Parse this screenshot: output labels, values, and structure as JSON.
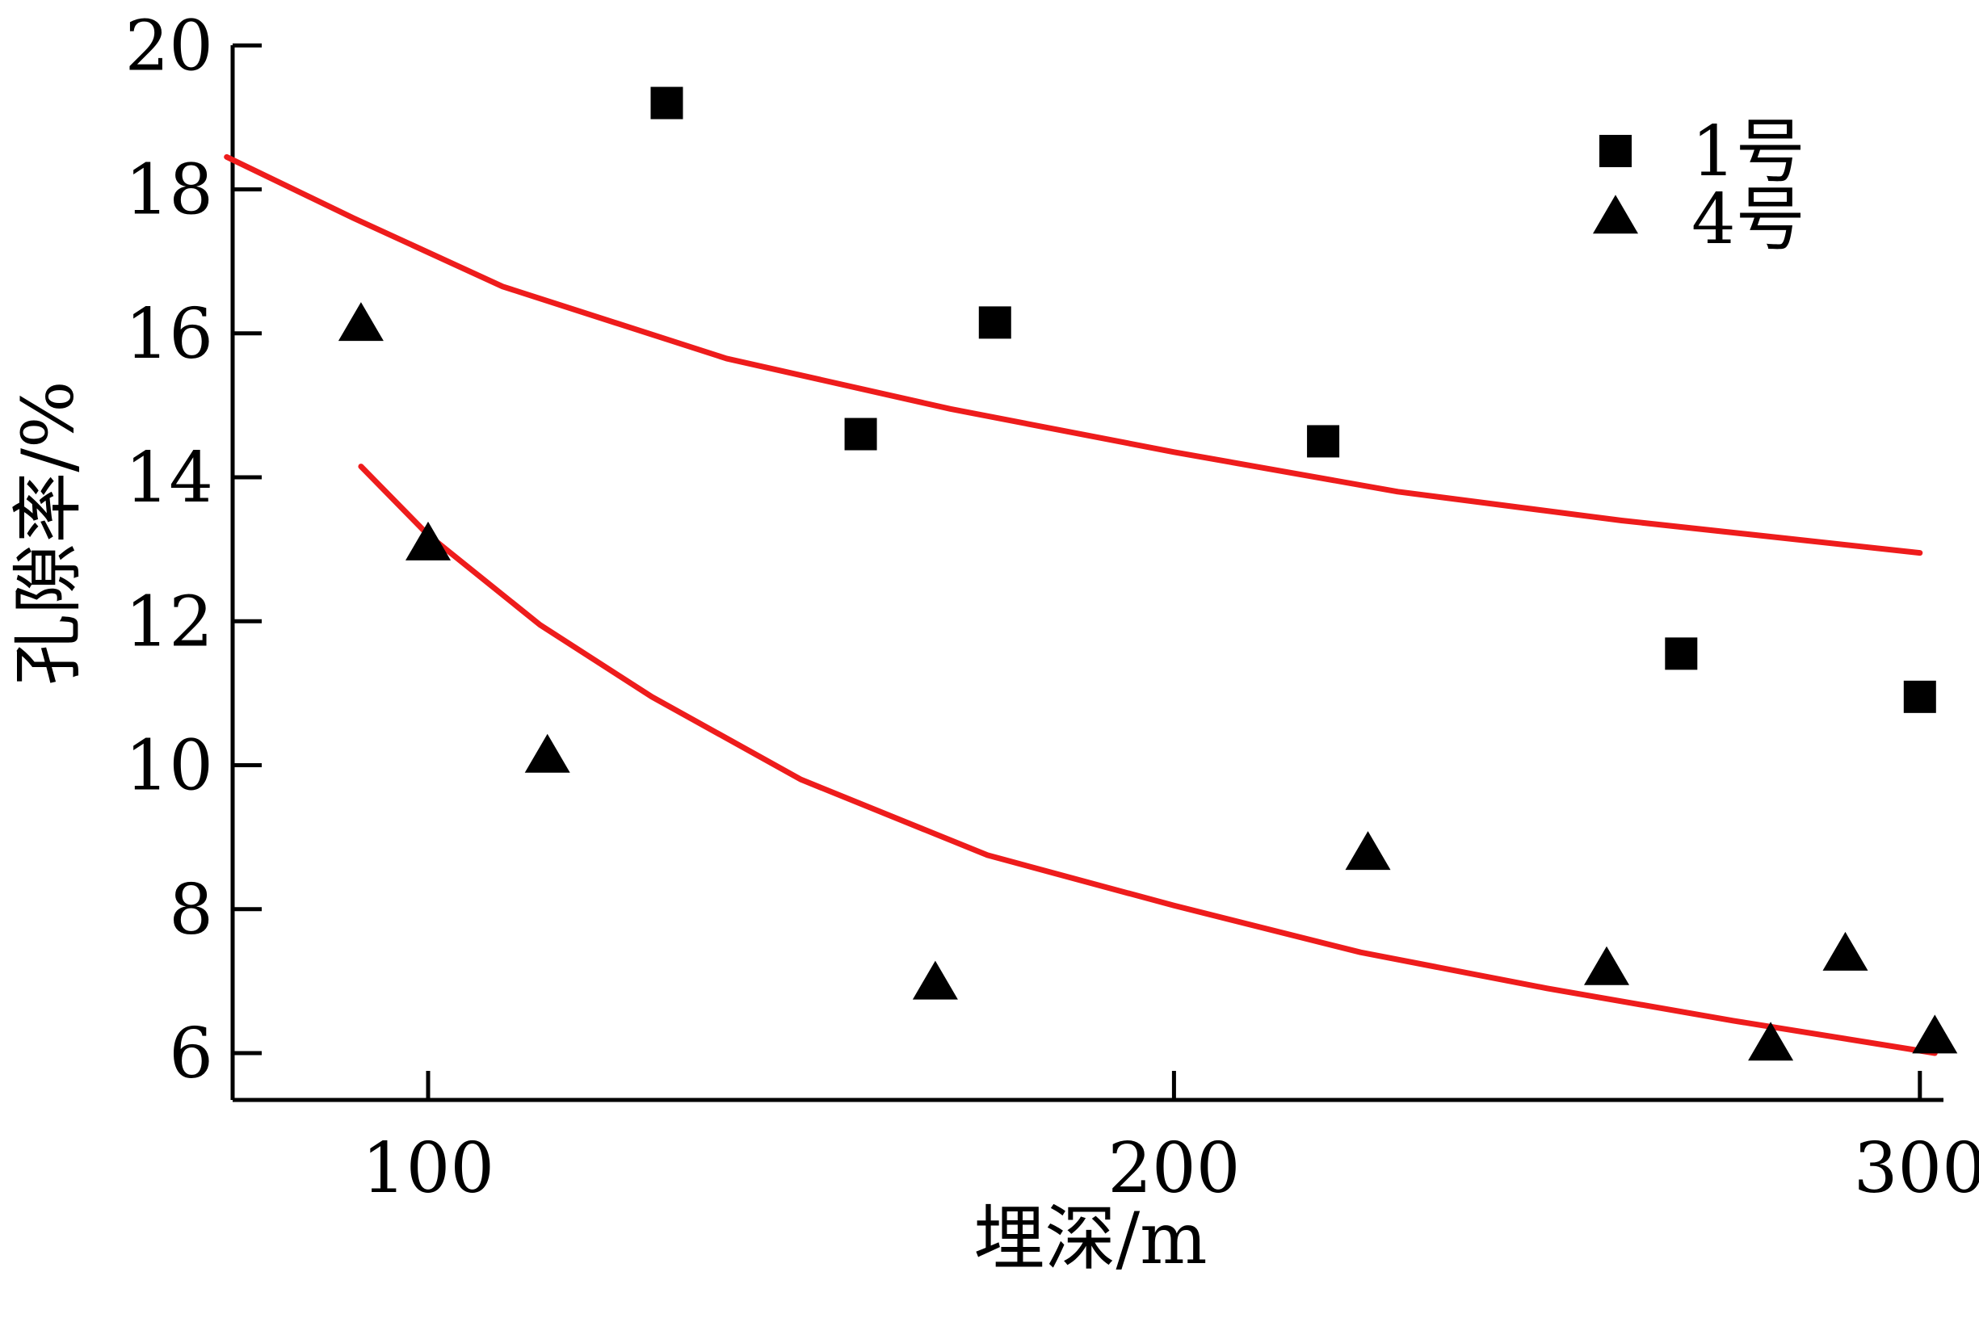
{
  "chart_data": {
    "type": "scatter",
    "xlabel": "埋深/m",
    "ylabel": "孔隙率/%",
    "xlim": [
      74,
      308
    ],
    "ylim": [
      5.4,
      20
    ],
    "x_ticks": [
      100,
      200,
      300
    ],
    "x_tick_labels": [
      "100",
      "200",
      "300"
    ],
    "y_ticks": [
      6,
      8,
      10,
      12,
      14,
      16,
      18,
      20
    ],
    "y_tick_labels": [
      "6",
      "8",
      "10",
      "12",
      "14",
      "16",
      "18",
      "20"
    ],
    "grid": false,
    "legend_position": "top-right",
    "series": [
      {
        "name": "1号",
        "marker": "square",
        "color": "#000000",
        "points": [
          {
            "x": 132,
            "y": 19.2
          },
          {
            "x": 158,
            "y": 14.6
          },
          {
            "x": 176,
            "y": 16.15
          },
          {
            "x": 220,
            "y": 14.5
          },
          {
            "x": 268,
            "y": 11.55
          },
          {
            "x": 300,
            "y": 10.95
          }
        ]
      },
      {
        "name": "4号",
        "marker": "triangle",
        "color": "#000000",
        "points": [
          {
            "x": 91,
            "y": 16.1
          },
          {
            "x": 100,
            "y": 13.05
          },
          {
            "x": 116,
            "y": 10.1
          },
          {
            "x": 168,
            "y": 6.95
          },
          {
            "x": 226,
            "y": 8.75
          },
          {
            "x": 258,
            "y": 7.15
          },
          {
            "x": 280,
            "y": 6.1
          },
          {
            "x": 290,
            "y": 7.35
          },
          {
            "x": 302,
            "y": 6.2
          }
        ]
      }
    ],
    "fit_lines": [
      {
        "series": "1号",
        "color": "#ee1c1c",
        "points": [
          {
            "x": 73,
            "y": 18.45
          },
          {
            "x": 90,
            "y": 17.6
          },
          {
            "x": 110,
            "y": 16.65
          },
          {
            "x": 140,
            "y": 15.65
          },
          {
            "x": 170,
            "y": 14.95
          },
          {
            "x": 200,
            "y": 14.35
          },
          {
            "x": 230,
            "y": 13.8
          },
          {
            "x": 260,
            "y": 13.4
          },
          {
            "x": 300,
            "y": 12.95
          }
        ]
      },
      {
        "series": "4号",
        "color": "#ee1c1c",
        "points": [
          {
            "x": 91,
            "y": 14.15
          },
          {
            "x": 100,
            "y": 13.2
          },
          {
            "x": 115,
            "y": 11.95
          },
          {
            "x": 130,
            "y": 10.95
          },
          {
            "x": 150,
            "y": 9.8
          },
          {
            "x": 175,
            "y": 8.75
          },
          {
            "x": 200,
            "y": 8.05
          },
          {
            "x": 225,
            "y": 7.4
          },
          {
            "x": 250,
            "y": 6.9
          },
          {
            "x": 275,
            "y": 6.45
          },
          {
            "x": 302,
            "y": 6.0
          }
        ]
      }
    ]
  }
}
